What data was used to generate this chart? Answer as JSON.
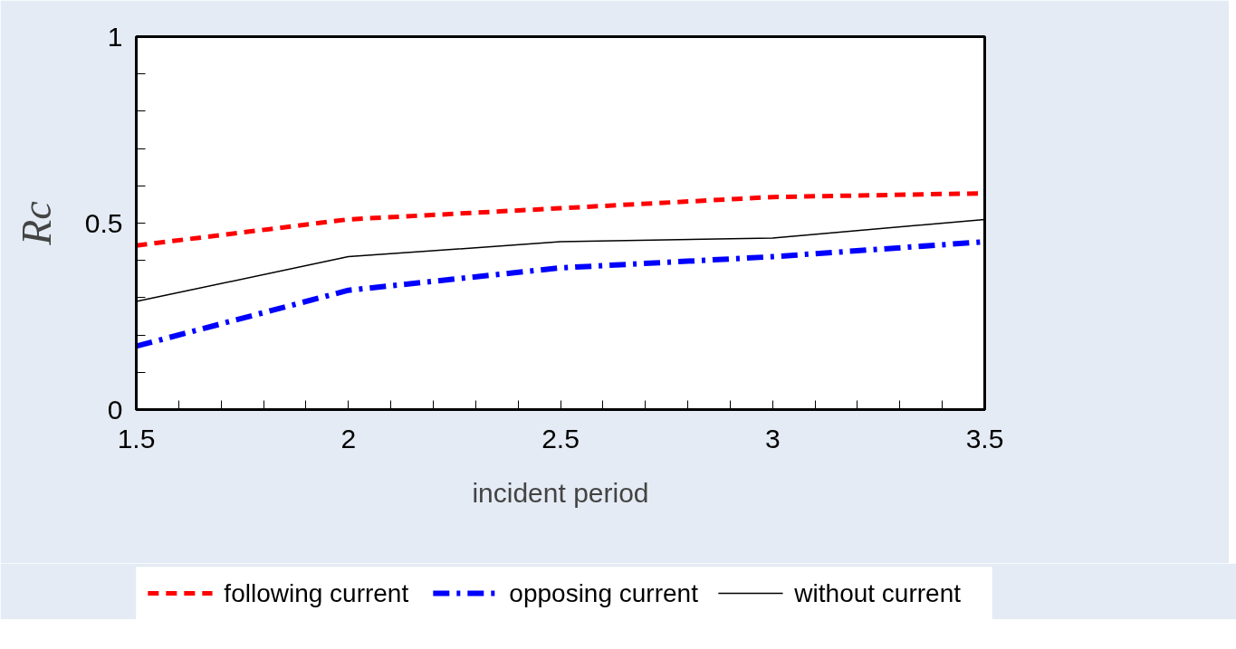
{
  "chart_data": {
    "type": "line",
    "xlabel": "incident period",
    "ylabel": "Rc",
    "x": [
      1.5,
      2,
      2.5,
      3,
      3.5
    ],
    "series": [
      {
        "name": "following current",
        "color": "#ff0000",
        "line_style": "dashed",
        "values": [
          0.44,
          0.51,
          0.54,
          0.57,
          0.58
        ]
      },
      {
        "name": "opposing current",
        "color": "#0000ff",
        "line_style": "dashdot",
        "values": [
          0.17,
          0.32,
          0.38,
          0.41,
          0.45
        ]
      },
      {
        "name": "without  current",
        "color": "#000000",
        "line_style": "solid",
        "values": [
          0.29,
          0.41,
          0.45,
          0.46,
          0.51
        ]
      }
    ],
    "xlim": [
      1.5,
      3.5
    ],
    "ylim": [
      0,
      1
    ],
    "xticks": [
      1.5,
      {
        "value": 1.6,
        "label": null
      },
      {
        "value": 1.7,
        "label": null
      },
      {
        "value": 1.8,
        "label": null
      },
      {
        "value": 1.9,
        "label": null
      },
      2,
      {
        "value": 2.1,
        "label": null
      },
      {
        "value": 2.2,
        "label": null
      },
      {
        "value": 2.3,
        "label": null
      },
      {
        "value": 2.4,
        "label": null
      },
      2.5,
      {
        "value": 2.6,
        "label": null
      },
      {
        "value": 2.7,
        "label": null
      },
      {
        "value": 2.8,
        "label": null
      },
      {
        "value": 2.9,
        "label": null
      },
      3,
      {
        "value": 3.1,
        "label": null
      },
      {
        "value": 3.2,
        "label": null
      },
      {
        "value": 3.3,
        "label": null
      },
      {
        "value": 3.4,
        "label": null
      },
      3.5
    ],
    "yticks": [
      0,
      {
        "value": 0.1,
        "label": null
      },
      {
        "value": 0.2,
        "label": null
      },
      {
        "value": 0.3,
        "label": null
      },
      {
        "value": 0.4,
        "label": null
      },
      0.5,
      {
        "value": 0.6,
        "label": null
      },
      {
        "value": 0.7,
        "label": null
      },
      {
        "value": 0.8,
        "label": null
      },
      {
        "value": 0.9,
        "label": null
      },
      1
    ],
    "grid": false,
    "legend": "bottom",
    "marker": "none"
  }
}
